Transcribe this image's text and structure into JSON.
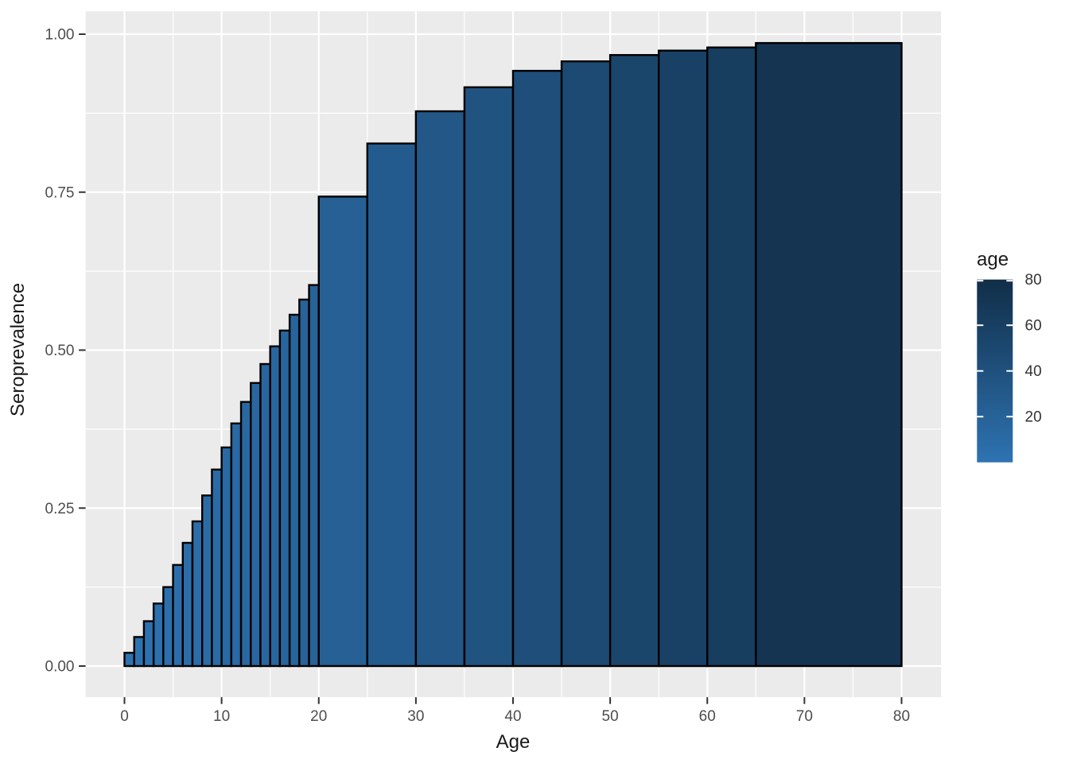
{
  "chart_data": {
    "type": "bar",
    "title": "",
    "xlabel": "Age",
    "ylabel": "Seroprevalence",
    "x_ticks": [
      0,
      10,
      20,
      30,
      40,
      50,
      60,
      70,
      80
    ],
    "y_ticks": [
      "0.00",
      "0.25",
      "0.50",
      "0.75",
      "1.00"
    ],
    "y_tick_values": [
      0,
      0.25,
      0.5,
      0.75,
      1.0
    ],
    "x_minor_ticks": [
      5,
      15,
      25,
      35,
      45,
      55,
      65,
      75
    ],
    "y_minor_tick_values": [
      0.125,
      0.375,
      0.625,
      0.875
    ],
    "xlim": [
      -4,
      84
    ],
    "ylim": [
      -0.05,
      1.037
    ],
    "grid": "white major and minor gridlines on gray panel",
    "legend_position": "right",
    "bars": [
      {
        "age_from": 0,
        "age_to": 1,
        "value": 0.021
      },
      {
        "age_from": 1,
        "age_to": 2,
        "value": 0.046
      },
      {
        "age_from": 2,
        "age_to": 3,
        "value": 0.071
      },
      {
        "age_from": 3,
        "age_to": 4,
        "value": 0.099
      },
      {
        "age_from": 4,
        "age_to": 5,
        "value": 0.125
      },
      {
        "age_from": 5,
        "age_to": 6,
        "value": 0.16
      },
      {
        "age_from": 6,
        "age_to": 7,
        "value": 0.195
      },
      {
        "age_from": 7,
        "age_to": 8,
        "value": 0.229
      },
      {
        "age_from": 8,
        "age_to": 9,
        "value": 0.27
      },
      {
        "age_from": 9,
        "age_to": 10,
        "value": 0.311
      },
      {
        "age_from": 10,
        "age_to": 11,
        "value": 0.346
      },
      {
        "age_from": 11,
        "age_to": 12,
        "value": 0.384
      },
      {
        "age_from": 12,
        "age_to": 13,
        "value": 0.418
      },
      {
        "age_from": 13,
        "age_to": 14,
        "value": 0.448
      },
      {
        "age_from": 14,
        "age_to": 15,
        "value": 0.478
      },
      {
        "age_from": 15,
        "age_to": 16,
        "value": 0.506
      },
      {
        "age_from": 16,
        "age_to": 17,
        "value": 0.531
      },
      {
        "age_from": 17,
        "age_to": 18,
        "value": 0.556
      },
      {
        "age_from": 18,
        "age_to": 19,
        "value": 0.58
      },
      {
        "age_from": 19,
        "age_to": 20,
        "value": 0.603
      },
      {
        "age_from": 20,
        "age_to": 25,
        "value": 0.743
      },
      {
        "age_from": 25,
        "age_to": 30,
        "value": 0.827
      },
      {
        "age_from": 30,
        "age_to": 35,
        "value": 0.878
      },
      {
        "age_from": 35,
        "age_to": 40,
        "value": 0.916
      },
      {
        "age_from": 40,
        "age_to": 45,
        "value": 0.942
      },
      {
        "age_from": 45,
        "age_to": 50,
        "value": 0.957
      },
      {
        "age_from": 50,
        "age_to": 55,
        "value": 0.967
      },
      {
        "age_from": 55,
        "age_to": 60,
        "value": 0.974
      },
      {
        "age_from": 60,
        "age_to": 65,
        "value": 0.979
      },
      {
        "age_from": 65,
        "age_to": 80,
        "value": 0.986
      }
    ],
    "legend": {
      "title": "age",
      "type": "colorbar",
      "range": [
        0,
        80
      ],
      "ticks": [
        20,
        40,
        60,
        80
      ],
      "low_color": "#2E73B2",
      "high_color": "#112E48"
    },
    "style": {
      "panel_bg": "#EBEBEB",
      "grid_color": "#FFFFFF",
      "bar_border": "#000000",
      "tick_color": "#333333",
      "tick_label_color": "#4D4D4D",
      "axis_title_color": "#1A1A1A",
      "legend_label_color": "#333333"
    }
  }
}
